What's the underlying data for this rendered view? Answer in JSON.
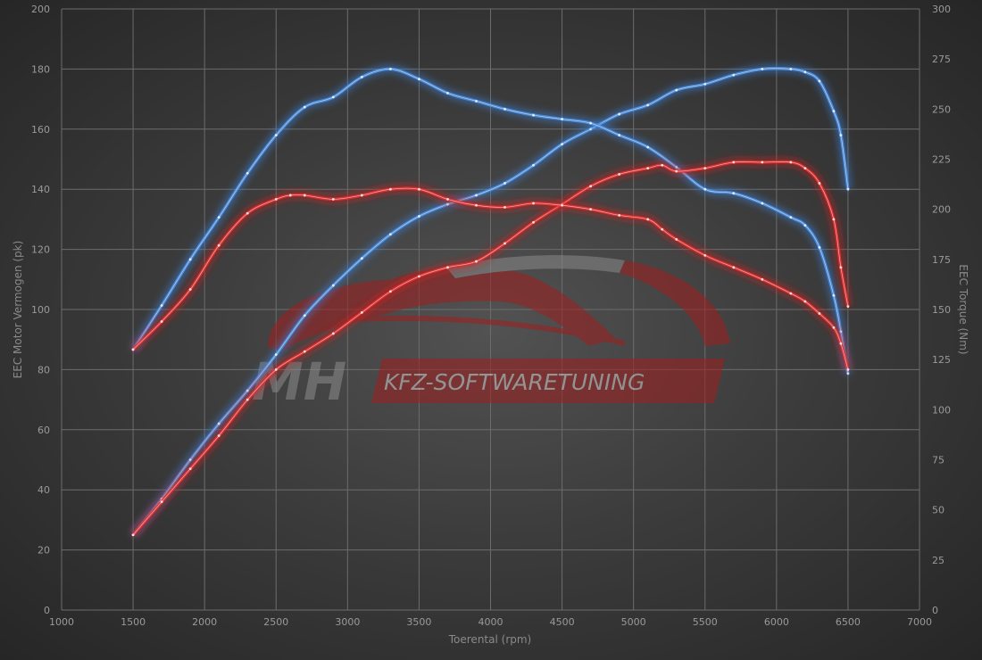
{
  "chart_data": {
    "type": "line",
    "xlabel": "Toerental (rpm)",
    "ylabel": "EEC Motor Vermogen (pk)",
    "y2label": "EEC Torque (Nm)",
    "xlim": [
      1000,
      7000
    ],
    "ylim": [
      0,
      200
    ],
    "y2lim": [
      0,
      300
    ],
    "x_ticks": [
      1000,
      1500,
      2000,
      2500,
      3000,
      3500,
      4000,
      4500,
      5000,
      5500,
      6000,
      6500,
      7000
    ],
    "y_ticks": [
      0,
      20,
      40,
      60,
      80,
      100,
      120,
      140,
      160,
      180,
      200
    ],
    "y2_ticks": [
      0,
      25,
      50,
      75,
      100,
      125,
      150,
      175,
      200,
      225,
      250,
      275,
      300
    ],
    "grid": true,
    "watermark": {
      "logo": "MH",
      "text": "KFZ-SOFTWARETUNING"
    },
    "colors": {
      "blue": "#4d8fe0",
      "blue_glow": "#3a7fd8",
      "red": "#e03030",
      "red_glow": "#d42020",
      "grid": "#6c6c6c",
      "tick_text": "#9a9a9a"
    },
    "series": [
      {
        "color": "blue",
        "axis": "left",
        "x": [
          1500,
          1700,
          1900,
          2100,
          2300,
          2500,
          2700,
          2900,
          3100,
          3300,
          3500,
          3700,
          3900,
          4100,
          4300,
          4500,
          4700,
          4900,
          5100,
          5300,
          5500,
          5700,
          5900,
          6100,
          6200,
          6300,
          6400,
          6450,
          6500
        ],
        "values": [
          25,
          37,
          50,
          62,
          73,
          85,
          98,
          108,
          117,
          125,
          131,
          135,
          138,
          142,
          148,
          155,
          160,
          165,
          168,
          173,
          175,
          178,
          180,
          180,
          179,
          176,
          166,
          158,
          140
        ]
      },
      {
        "color": "blue",
        "axis": "right",
        "x": [
          1500,
          1700,
          1900,
          2100,
          2300,
          2500,
          2700,
          2900,
          3100,
          3300,
          3500,
          3700,
          3900,
          4100,
          4300,
          4500,
          4700,
          4900,
          5100,
          5300,
          5500,
          5700,
          5900,
          6100,
          6200,
          6300,
          6400,
          6450,
          6500
        ],
        "values": [
          130,
          152,
          175,
          196,
          218,
          237,
          251,
          256,
          266,
          270,
          265,
          258,
          254,
          250,
          247,
          245,
          243,
          237,
          231,
          221,
          210,
          208,
          203,
          196,
          192,
          181,
          157,
          139,
          118
        ]
      },
      {
        "color": "red",
        "axis": "left",
        "x": [
          1500,
          1700,
          1900,
          2100,
          2300,
          2500,
          2700,
          2900,
          3100,
          3300,
          3500,
          3700,
          3900,
          4100,
          4300,
          4500,
          4700,
          4900,
          5100,
          5200,
          5300,
          5500,
          5700,
          5900,
          6100,
          6200,
          6300,
          6400,
          6450,
          6500
        ],
        "values": [
          25,
          36,
          47,
          58,
          70,
          80,
          86,
          92,
          99,
          106,
          111,
          114,
          116,
          122,
          129,
          135,
          141,
          145,
          147,
          148,
          146,
          147,
          149,
          149,
          149,
          147,
          142,
          130,
          114,
          101
        ]
      },
      {
        "color": "red",
        "axis": "right",
        "x": [
          1500,
          1700,
          1900,
          2100,
          2300,
          2500,
          2600,
          2700,
          2900,
          3100,
          3300,
          3500,
          3700,
          3900,
          4100,
          4300,
          4500,
          4700,
          4900,
          5100,
          5200,
          5300,
          5500,
          5700,
          5900,
          6100,
          6200,
          6300,
          6400,
          6450,
          6500
        ],
        "values": [
          130,
          144,
          160,
          182,
          198,
          205,
          207,
          207,
          205,
          207,
          210,
          210,
          205,
          202,
          201,
          203,
          202,
          200,
          197,
          195,
          190,
          185,
          177,
          171,
          165,
          158,
          154,
          148,
          141,
          133,
          120
        ]
      }
    ]
  }
}
